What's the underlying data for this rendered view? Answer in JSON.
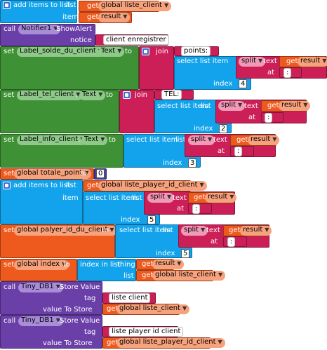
{
  "colors": {
    "list": "#6e3ea0",
    "list_block": "#12a3ec",
    "math": "#3f3fa8",
    "text": "#cc1f58",
    "variable_get": "#ee5a1e",
    "variable_set": "#ee5a1e",
    "component_set": "#3f9135",
    "notifier_call": "#6a3fa8",
    "tinydb_call": "#6a3fa8"
  },
  "icons": {
    "gear": "gear-icon",
    "dropdown": "chevron-down-icon"
  },
  "blocks": {
    "add1": {
      "title": "add items to list",
      "list_label": "list",
      "item_label": "item",
      "get1_kw": "get",
      "get1_val": "global liste_client",
      "get2_kw": "get",
      "get2_val": "result"
    },
    "notifier": {
      "call_kw": "call",
      "component": "Notifier1",
      "method": ".ShowAlert",
      "notice_label": "notice",
      "notice_text": " client enregistrer "
    },
    "set_solde": {
      "set_kw": "set",
      "component": "Label_solde_du_client",
      "dot": ".",
      "property": "Text",
      "to_kw": "to",
      "join_kw": "join",
      "text1": " points: ",
      "sel_kw": "select list item",
      "list_kw": "list",
      "split_kw": "split",
      "text_kw": "text",
      "get_kw": "get",
      "get_val": "result",
      "at_kw": "at",
      "at_text": " : ",
      "index_kw": "index",
      "index_val": "4"
    },
    "set_tel": {
      "set_kw": "set",
      "component": "Label_tel_client",
      "dot": ".",
      "property": "Text",
      "to_kw": "to",
      "join_kw": "join",
      "text1": " TEL: ",
      "sel_kw": "select list item",
      "list_kw": "list",
      "split_kw": "split",
      "text_kw": "text",
      "get_kw": "get",
      "get_val": "result",
      "at_kw": "at",
      "at_text": " : ",
      "index_kw": "index",
      "index_val": "2"
    },
    "set_info": {
      "set_kw": "set",
      "component": "Label_info_client",
      "dot": ".",
      "property": "Text",
      "to_kw": "to",
      "sel_kw": "select list item",
      "list_kw": "list",
      "split_kw": "split",
      "text_kw": "text",
      "get_kw": "get",
      "get_val": "result",
      "at_kw": "at",
      "at_text": " : ",
      "index_kw": "index",
      "index_val": "3"
    },
    "set_total": {
      "set_kw": "set",
      "var": "global totale_point",
      "to_kw": "to",
      "value": "0"
    },
    "add2": {
      "title": "add items to list",
      "list_label": "list",
      "item_label": "item",
      "get_kw": "get",
      "get_val": "global liste_player_id_client",
      "sel_kw": "select list item",
      "list_kw": "list",
      "split_kw": "split",
      "text_kw": "text",
      "get2_kw": "get",
      "get2_val": "result",
      "at_kw": "at",
      "at_text": " : ",
      "index_kw": "index",
      "index_val": "5"
    },
    "set_player": {
      "set_kw": "set",
      "var": "global palyer_id_du_client",
      "to_kw": "to",
      "sel_kw": "select list item",
      "list_kw": "list",
      "split_kw": "split",
      "text_kw": "text",
      "get_kw": "get",
      "get_val": "result",
      "at_kw": "at",
      "at_text": " : ",
      "index_kw": "index",
      "index_val": "5"
    },
    "set_index": {
      "set_kw": "set",
      "var": "global index",
      "to_kw": "to",
      "iil_kw": "index in list",
      "thing_kw": "thing",
      "get1_kw": "get",
      "get1_val": "result",
      "list_kw": "list",
      "get2_kw": "get",
      "get2_val": "global liste_client"
    },
    "store1": {
      "call_kw": "call",
      "component": "Tiny_DB1",
      "method": ".Store Value",
      "tag_label": "tag",
      "tag_text": " liste client ",
      "value_label": "value To Store",
      "get_kw": "get",
      "get_val": "global liste_client"
    },
    "store2": {
      "call_kw": "call",
      "component": "Tiny_DB1",
      "method": ".Store Value",
      "tag_label": "tag",
      "tag_text": " liste player id client ",
      "value_label": "value To Store",
      "get_kw": "get",
      "get_val": "global liste_player_id_client"
    }
  }
}
